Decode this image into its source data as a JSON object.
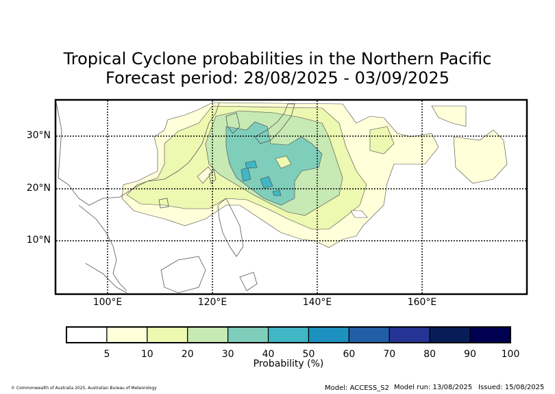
{
  "title": {
    "line1": "Tropical Cyclone probabilities in the Northern Pacific",
    "line2": "Forecast period: 28/08/2025 - 03/09/2025"
  },
  "map": {
    "lat_labels": [
      "30°N",
      "20°N",
      "10°N"
    ],
    "lon_labels": [
      "100°E",
      "120°E",
      "140°E",
      "160°E"
    ],
    "extent": {
      "lon": [
        90,
        180
      ],
      "lat": [
        0,
        37
      ]
    },
    "land_color": "#ffffff",
    "coast_color": "#555555"
  },
  "colorbar": {
    "label": "Probability (%)",
    "ticks": [
      "5",
      "10",
      "20",
      "30",
      "40",
      "50",
      "60",
      "70",
      "80",
      "90",
      "100"
    ],
    "colors": [
      "#ffffff",
      "#ffffd9",
      "#edf8b1",
      "#c7e9b4",
      "#7fcdbb",
      "#41b6c4",
      "#1d91c0",
      "#225ea8",
      "#253494",
      "#081d58",
      "#000052"
    ]
  },
  "footer": {
    "copyright": "© Commonwealth of Australia 2025, Australian Bureau of Meteorology",
    "model": "Model: ACCESS_S2",
    "model_run": "Model run: 13/08/2025",
    "issued": "Issued: 15/08/2025"
  }
}
